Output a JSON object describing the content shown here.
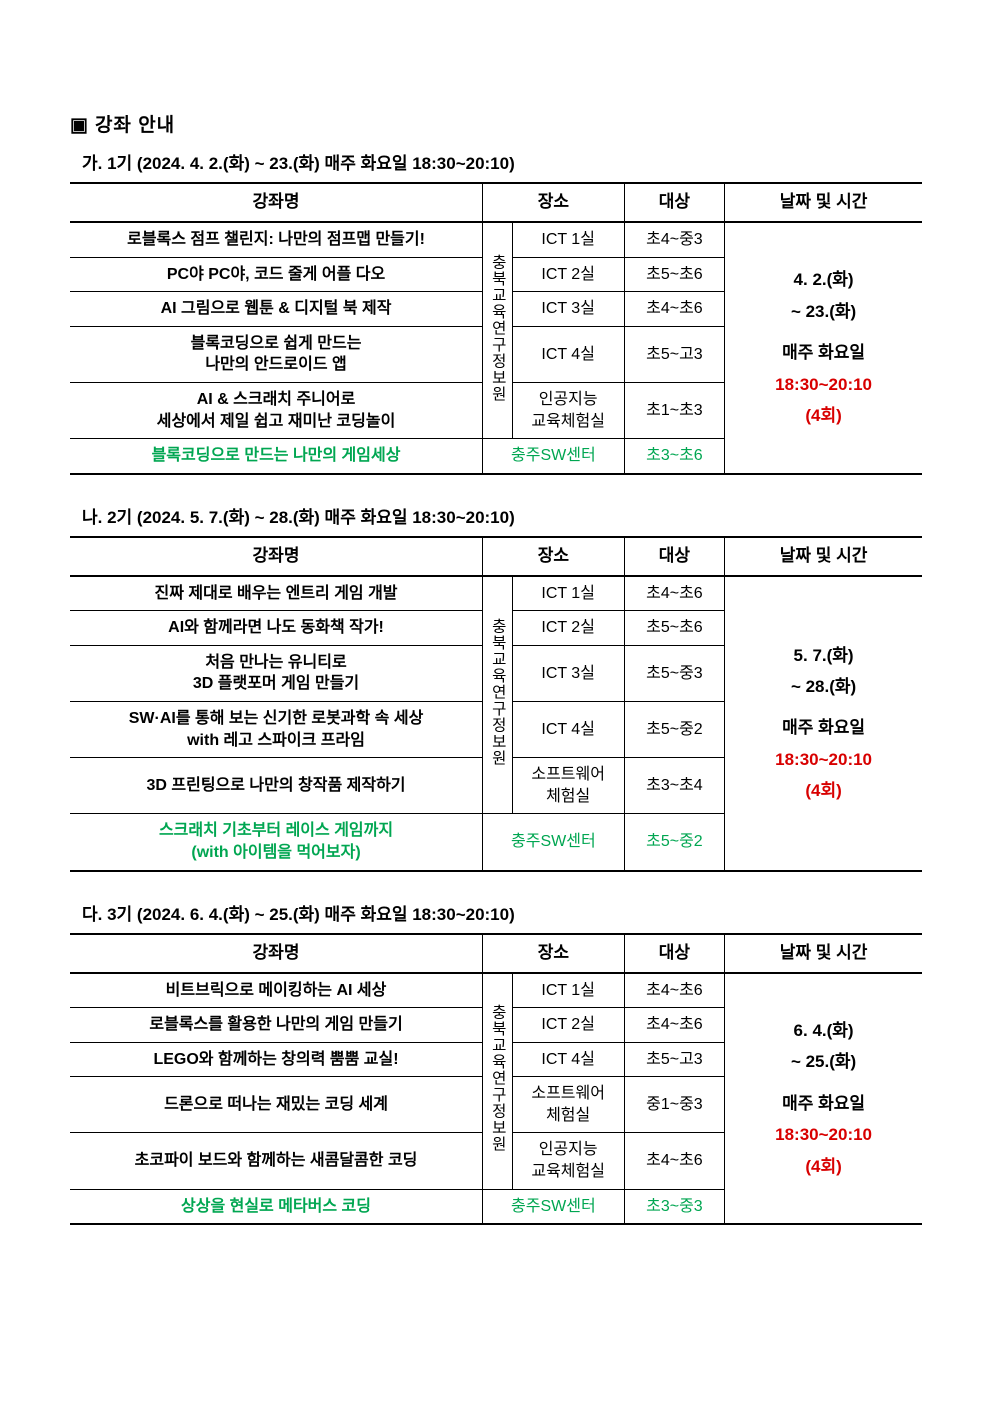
{
  "page_title": "강좌 안내",
  "bullet": "▣",
  "colors": {
    "black": "#000000",
    "green": "#00a651",
    "red": "#d80000",
    "white": "#ffffff"
  },
  "headers": {
    "name": "강좌명",
    "loc": "장소",
    "target": "대상",
    "time": "날짜 및 시간"
  },
  "loc_vertical": "충북교육연구정보원",
  "centers": {
    "chungju": "충주SW센터"
  },
  "terms": [
    {
      "label": "가. 1기 (2024. 4. 2.(화) ~ 23.(화) 매주 화요일 18:30~20:10)",
      "schedule": {
        "line1": "4. 2.(화)",
        "line2": "~ 23.(화)",
        "spacer": "",
        "line3": "매주 화요일",
        "line4_time": "18:30~20:10",
        "line5": "(4회)"
      },
      "rows": [
        {
          "name": "로블록스 점프 챌린지: 나만의 점프맵 만들기!",
          "room": "ICT 1실",
          "target": "초4~중3",
          "color": "black"
        },
        {
          "name": "PC야 PC야, 코드 줄게 어플 다오",
          "room": "ICT 2실",
          "target": "초5~초6",
          "color": "black"
        },
        {
          "name": "AI 그림으로 웹툰 & 디지털 북 제작",
          "room": "ICT 3실",
          "target": "초4~초6",
          "color": "black"
        },
        {
          "name": "블록코딩으로 쉽게 만드는\n나만의 안드로이드 앱",
          "room": "ICT 4실",
          "target": "초5~고3",
          "color": "black"
        },
        {
          "name": "AI & 스크래치 주니어로\n세상에서 제일 쉽고 재미난 코딩놀이",
          "room": "인공지능\n교육체험실",
          "target": "초1~초3",
          "color": "black"
        }
      ],
      "last_row": {
        "name": "블록코딩으로 만드는 나만의 게임세상",
        "room": "충주SW센터",
        "target": "초3~초6",
        "color": "green"
      }
    },
    {
      "label": "나. 2기 (2024. 5. 7.(화) ~ 28.(화) 매주 화요일 18:30~20:10)",
      "schedule": {
        "line1": "5. 7.(화)",
        "line2": "~ 28.(화)",
        "spacer": "",
        "line3": "매주 화요일",
        "line4_time": "18:30~20:10",
        "line5": "(4회)"
      },
      "rows": [
        {
          "name": "진짜 제대로 배우는 엔트리 게임 개발",
          "room": "ICT 1실",
          "target": "초4~초6",
          "color": "black"
        },
        {
          "name": "AI와 함께라면 나도 동화책 작가!",
          "room": "ICT 2실",
          "target": "초5~초6",
          "color": "black"
        },
        {
          "name": "처음 만나는 유니티로\n3D 플랫포머 게임 만들기",
          "room": "ICT 3실",
          "target": "초5~중3",
          "color": "black"
        },
        {
          "name": "SW·AI를 통해 보는 신기한 로봇과학 속 세상\nwith 레고 스파이크 프라임",
          "room": "ICT 4실",
          "target": "초5~중2",
          "color": "black"
        },
        {
          "name": "3D 프린팅으로 나만의 창작품 제작하기",
          "room": "소프트웨어\n체험실",
          "target": "초3~초4",
          "color": "black"
        }
      ],
      "last_row": {
        "name": "스크래치 기초부터 레이스 게임까지\n(with 아이템을 먹어보자)",
        "room": "충주SW센터",
        "target": "초5~중2",
        "color": "green"
      }
    },
    {
      "label": "다. 3기 (2024. 6. 4.(화) ~ 25.(화) 매주 화요일 18:30~20:10)",
      "schedule": {
        "line1": "6. 4.(화)",
        "line2": "~ 25.(화)",
        "spacer": "",
        "line3": "매주 화요일",
        "line4_time": "18:30~20:10",
        "line5": "(4회)"
      },
      "rows": [
        {
          "name": "비트브릭으로 메이킹하는 AI 세상",
          "room": "ICT 1실",
          "target": "초4~초6",
          "color": "black"
        },
        {
          "name": "로블록스를 활용한 나만의 게임 만들기",
          "room": "ICT 2실",
          "target": "초4~초6",
          "color": "black"
        },
        {
          "name": "LEGO와 함께하는 창의력 뿜뿜 교실!",
          "room": "ICT 4실",
          "target": "초5~고3",
          "color": "black"
        },
        {
          "name": "드론으로 떠나는 재밌는 코딩 세계",
          "room": "소프트웨어\n체험실",
          "target": "중1~중3",
          "color": "black"
        },
        {
          "name": "초코파이 보드와 함께하는 새콤달콤한 코딩",
          "room": "인공지능\n교육체험실",
          "target": "초4~초6",
          "color": "black"
        }
      ],
      "last_row": {
        "name": "상상을 현실로 메타버스 코딩",
        "room": "충주SW센터",
        "target": "초3~중3",
        "color": "green"
      }
    }
  ]
}
